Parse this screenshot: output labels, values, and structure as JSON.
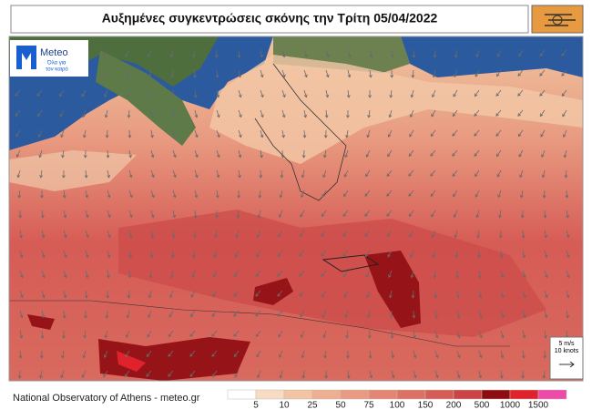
{
  "header": {
    "title": "Αυξημένες συγκεντρώσεις σκόνης την Τρίτη 05/04/2022"
  },
  "logo": {
    "name": "Meteo",
    "tagline_1": "Όλα για",
    "tagline_2": "τον καιρό"
  },
  "wind_legend": {
    "speed": "5 m/s",
    "knots": "10 knots"
  },
  "footer": {
    "source": "National Observatory of Athens - meteo.gr"
  },
  "colorbar": {
    "labels": [
      5,
      10,
      25,
      50,
      75,
      100,
      150,
      200,
      500,
      1000,
      1500
    ],
    "colors": [
      "#ffffff",
      "#f7dcc2",
      "#f2c4a4",
      "#eeae90",
      "#e99a80",
      "#e48672",
      "#dd7264",
      "#d65c56",
      "#cc4446",
      "#8e0c10",
      "#e0222c",
      "#ee4aa8"
    ]
  }
}
